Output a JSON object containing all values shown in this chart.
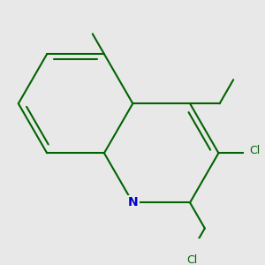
{
  "bg_color": "#e8e8e8",
  "bond_color": "#006400",
  "n_color": "#0000cc",
  "lw": 1.5,
  "dbo": 0.055,
  "figsize": [
    3.0,
    3.0
  ],
  "dpi": 100,
  "xlim": [
    -2.8,
    2.8
  ],
  "ylim": [
    -2.8,
    2.8
  ]
}
